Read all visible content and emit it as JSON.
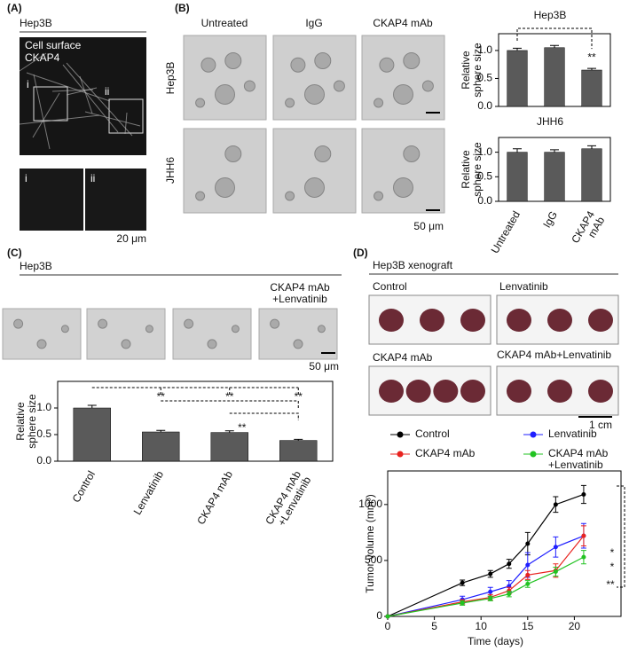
{
  "panel_a": {
    "label": "(A)",
    "title": "Hep3B",
    "image_text": [
      "Cell surface",
      "CKAP4"
    ],
    "roi_marks": [
      "i",
      "ii"
    ],
    "inset_labels": [
      "i",
      "ii"
    ],
    "scale": "20 μm"
  },
  "panel_b": {
    "label": "(B)",
    "columns": [
      "Untreated",
      "IgG",
      "CKAP4 mAb"
    ],
    "rows": [
      "Hep3B",
      "JHH6"
    ],
    "scale": "50 μm"
  },
  "panel_c": {
    "label": "(C)",
    "title": "Hep3B",
    "columns": [
      "Control",
      "Lenvatinib",
      "CKAP4 mAb",
      "CKAP4 mAb\n+Lenvatinib"
    ],
    "scale": "50 μm"
  },
  "panel_d": {
    "label": "(D)",
    "title": "Hep3B xenograft",
    "groups": [
      "Control",
      "Lenvatinib",
      "CKAP4 mAb",
      "CKAP4 mAb+Lenvatinib"
    ],
    "scale": "1 cm"
  },
  "chart_data": [
    {
      "type": "bar",
      "title": "Hep3B",
      "y_label": "Relative\nsphere size",
      "categories": [
        null,
        null,
        null
      ],
      "values": [
        1.0,
        1.05,
        0.65
      ],
      "errors": [
        0.04,
        0.04,
        0.03
      ],
      "color": "#5a5a5a",
      "ylim": [
        0,
        1.3
      ],
      "yticks": [
        {
          "value": 0,
          "label": "0.0"
        },
        0.5,
        {
          "value": 1,
          "label": "1.0"
        }
      ],
      "annotations": [
        "**"
      ]
    },
    {
      "type": "bar",
      "title": "JHH6",
      "y_label": "Relative\nsphere size",
      "categories": [
        "Untreated",
        "IgG",
        "CKAP4\nmAb"
      ],
      "values": [
        1.0,
        1.0,
        1.07
      ],
      "errors": [
        0.07,
        0.05,
        0.06
      ],
      "color": "#5a5a5a",
      "ylim": [
        0,
        1.3
      ],
      "yticks": [
        {
          "value": 0,
          "label": "0.0"
        },
        0.5,
        {
          "value": 1,
          "label": "1.0"
        }
      ]
    },
    {
      "type": "bar",
      "y_label": "Relative\nsphere size",
      "categories": [
        "Control",
        "Lenvatinib",
        "CKAP4 mAb",
        "CKAP4 mAb\n+Lenvatinib"
      ],
      "values": [
        1.0,
        0.55,
        0.54,
        0.39
      ],
      "errors": [
        0.05,
        0.03,
        0.03,
        0.02
      ],
      "color": "#5a5a5a",
      "ylim": [
        0,
        1.5
      ],
      "yticks": [
        {
          "value": 0,
          "label": "0.0"
        },
        0.5,
        {
          "value": 1,
          "label": "1.0"
        }
      ],
      "annotations": [
        "**",
        "**",
        "**",
        "**"
      ]
    },
    {
      "type": "line",
      "x_label": "Time (days)",
      "y_label": "Tumor volume (mm³)",
      "x": [
        0,
        8,
        11,
        13,
        15,
        18,
        21
      ],
      "series": [
        {
          "name": "Control",
          "color": "#000000",
          "values": [
            0,
            300,
            380,
            470,
            650,
            1000,
            1090
          ],
          "errors": [
            0,
            25,
            30,
            40,
            100,
            70,
            80
          ]
        },
        {
          "name": "Lenvatinib",
          "color": "#1f1fff",
          "values": [
            0,
            150,
            220,
            270,
            460,
            620,
            720
          ],
          "errors": [
            0,
            30,
            40,
            50,
            110,
            90,
            110
          ]
        },
        {
          "name": "CKAP4 mAb",
          "color": "#e8231f",
          "values": [
            0,
            130,
            170,
            230,
            370,
            410,
            720
          ],
          "errors": [
            0,
            20,
            25,
            30,
            40,
            60,
            90
          ]
        },
        {
          "name": "CKAP4 mAb\n+Lenvatinib",
          "color": "#22c322",
          "values": [
            0,
            120,
            160,
            200,
            290,
            400,
            530
          ],
          "errors": [
            0,
            20,
            20,
            25,
            30,
            40,
            60
          ]
        }
      ],
      "xlim": [
        0,
        25
      ],
      "ylim": [
        0,
        1300
      ],
      "xticks": [
        0,
        5,
        10,
        15,
        20
      ],
      "yticks": [
        0,
        500,
        1000
      ],
      "annotations": [
        "*",
        "*",
        "**"
      ]
    }
  ]
}
